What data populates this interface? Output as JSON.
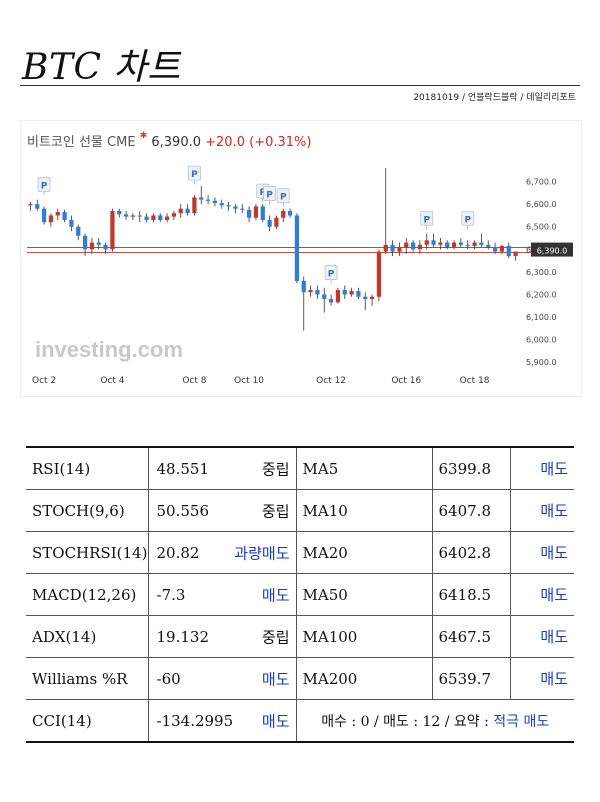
{
  "page_title": "BTC 차트",
  "byline": "20181019 / 언블락드블락 / 데일리리포트",
  "chart_data": {
    "type": "candlestick",
    "title": "비트코인 선물 CME",
    "last_price": "6,390.0",
    "change": "+20.0",
    "change_pct": "(+0.31%)",
    "watermark": "investing.com",
    "current_price_label": "6,390.0",
    "current_price": 6390,
    "ylim": [
      5870,
      6800
    ],
    "y_ticks": [
      "6,700.0",
      "6,600.0",
      "6,500.0",
      "6,400.0",
      "6,300.0",
      "6,200.0",
      "6,100.0",
      "6,000.0",
      "5,900.0"
    ],
    "y_tick_values": [
      6700,
      6600,
      6500,
      6400,
      6300,
      6200,
      6100,
      6000,
      5900
    ],
    "x_tick_labels": [
      "Oct 2",
      "Oct 4",
      "Oct 8",
      "Oct 10",
      "Oct 12",
      "Oct 16",
      "Oct 18"
    ],
    "x_tick_index": [
      2,
      12,
      24,
      32,
      44,
      55,
      65
    ],
    "colors": {
      "up": "#c0392b",
      "down": "#2e7dd7",
      "price_line": "#c0392b",
      "label_bg": "#333333"
    },
    "candles": [
      [
        6595,
        6610,
        6570,
        6600
      ],
      [
        6600,
        6620,
        6570,
        6580
      ],
      [
        6580,
        6590,
        6510,
        6520
      ],
      [
        6520,
        6560,
        6500,
        6550
      ],
      [
        6550,
        6580,
        6530,
        6565
      ],
      [
        6565,
        6575,
        6520,
        6530
      ],
      [
        6530,
        6550,
        6480,
        6500
      ],
      [
        6500,
        6510,
        6440,
        6460
      ],
      [
        6460,
        6470,
        6370,
        6400
      ],
      [
        6400,
        6450,
        6380,
        6430
      ],
      [
        6430,
        6450,
        6400,
        6420
      ],
      [
        6420,
        6430,
        6380,
        6400
      ],
      [
        6400,
        6580,
        6390,
        6570
      ],
      [
        6570,
        6580,
        6540,
        6555
      ],
      [
        6555,
        6570,
        6530,
        6545
      ],
      [
        6545,
        6560,
        6530,
        6550
      ],
      [
        6550,
        6570,
        6520,
        6545
      ],
      [
        6545,
        6560,
        6520,
        6530
      ],
      [
        6530,
        6560,
        6520,
        6550
      ],
      [
        6550,
        6560,
        6520,
        6530
      ],
      [
        6530,
        6560,
        6520,
        6545
      ],
      [
        6545,
        6570,
        6530,
        6560
      ],
      [
        6560,
        6600,
        6540,
        6580
      ],
      [
        6580,
        6600,
        6550,
        6560
      ],
      [
        6560,
        6640,
        6550,
        6630
      ],
      [
        6630,
        6680,
        6600,
        6620
      ],
      [
        6620,
        6640,
        6600,
        6615
      ],
      [
        6615,
        6630,
        6590,
        6605
      ],
      [
        6605,
        6620,
        6580,
        6595
      ],
      [
        6595,
        6610,
        6570,
        6590
      ],
      [
        6590,
        6600,
        6560,
        6580
      ],
      [
        6580,
        6600,
        6560,
        6575
      ],
      [
        6575,
        6590,
        6520,
        6540
      ],
      [
        6540,
        6600,
        6530,
        6590
      ],
      [
        6590,
        6600,
        6520,
        6530
      ],
      [
        6530,
        6550,
        6480,
        6500
      ],
      [
        6500,
        6550,
        6490,
        6540
      ],
      [
        6540,
        6580,
        6520,
        6570
      ],
      [
        6570,
        6580,
        6540,
        6550
      ],
      [
        6550,
        6560,
        6250,
        6260
      ],
      [
        6260,
        6280,
        6040,
        6210
      ],
      [
        6210,
        6240,
        6190,
        6220
      ],
      [
        6220,
        6240,
        6180,
        6200
      ],
      [
        6200,
        6230,
        6120,
        6180
      ],
      [
        6180,
        6200,
        6150,
        6165
      ],
      [
        6165,
        6230,
        6160,
        6220
      ],
      [
        6220,
        6240,
        6180,
        6200
      ],
      [
        6200,
        6230,
        6190,
        6215
      ],
      [
        6215,
        6230,
        6180,
        6190
      ],
      [
        6190,
        6210,
        6130,
        6180
      ],
      [
        6180,
        6200,
        6150,
        6190
      ],
      [
        6190,
        6400,
        6170,
        6390
      ],
      [
        6390,
        6760,
        6380,
        6420
      ],
      [
        6420,
        6440,
        6370,
        6390
      ],
      [
        6390,
        6430,
        6370,
        6410
      ],
      [
        6410,
        6450,
        6380,
        6430
      ],
      [
        6430,
        6440,
        6390,
        6400
      ],
      [
        6400,
        6440,
        6380,
        6420
      ],
      [
        6420,
        6470,
        6400,
        6440
      ],
      [
        6440,
        6470,
        6410,
        6420
      ],
      [
        6420,
        6450,
        6400,
        6430
      ],
      [
        6430,
        6440,
        6400,
        6410
      ],
      [
        6410,
        6440,
        6400,
        6430
      ],
      [
        6430,
        6450,
        6410,
        6420
      ],
      [
        6420,
        6440,
        6400,
        6415
      ],
      [
        6415,
        6440,
        6400,
        6430
      ],
      [
        6430,
        6470,
        6410,
        6420
      ],
      [
        6420,
        6440,
        6400,
        6410
      ],
      [
        6410,
        6430,
        6380,
        6390
      ],
      [
        6390,
        6420,
        6380,
        6415
      ],
      [
        6415,
        6430,
        6360,
        6370
      ],
      [
        6370,
        6390,
        6350,
        6390
      ]
    ],
    "event_markers": {
      "label": "P",
      "index": [
        2,
        24,
        34,
        35,
        37,
        44,
        58,
        64
      ],
      "price": [
        6630,
        6680,
        6600,
        6590,
        6580,
        6240,
        6480,
        6480
      ]
    }
  },
  "indicators": [
    {
      "name": "RSI(14)",
      "value": "48.551",
      "signal": "중립",
      "signal_type": "neutral",
      "ma_name": "MA5",
      "ma_value": "6399.8",
      "ma_signal": "매도"
    },
    {
      "name": "STOCH(9,6)",
      "value": "50.556",
      "signal": "중립",
      "signal_type": "neutral",
      "ma_name": "MA10",
      "ma_value": "6407.8",
      "ma_signal": "매도"
    },
    {
      "name": "STOCHRSI(14)",
      "value": "20.82",
      "signal": "과량매도",
      "signal_type": "sell",
      "ma_name": "MA20",
      "ma_value": "6402.8",
      "ma_signal": "매도"
    },
    {
      "name": "MACD(12,26)",
      "value": "-7.3",
      "signal": "매도",
      "signal_type": "sell",
      "ma_name": "MA50",
      "ma_value": "6418.5",
      "ma_signal": "매도"
    },
    {
      "name": "ADX(14)",
      "value": "19.132",
      "signal": "중립",
      "signal_type": "neutral",
      "ma_name": "MA100",
      "ma_value": "6467.5",
      "ma_signal": "매도"
    },
    {
      "name": "Williams %R",
      "value": "-60",
      "signal": "매도",
      "signal_type": "sell",
      "ma_name": "MA200",
      "ma_value": "6539.7",
      "ma_signal": "매도"
    }
  ],
  "last_row": {
    "name": "CCI(14)",
    "value": "-134.2995",
    "signal": "매도",
    "summary_text": "매수 : 0 / 매도 : 12 / 요약 :",
    "summary_signal": "적극 매도"
  }
}
